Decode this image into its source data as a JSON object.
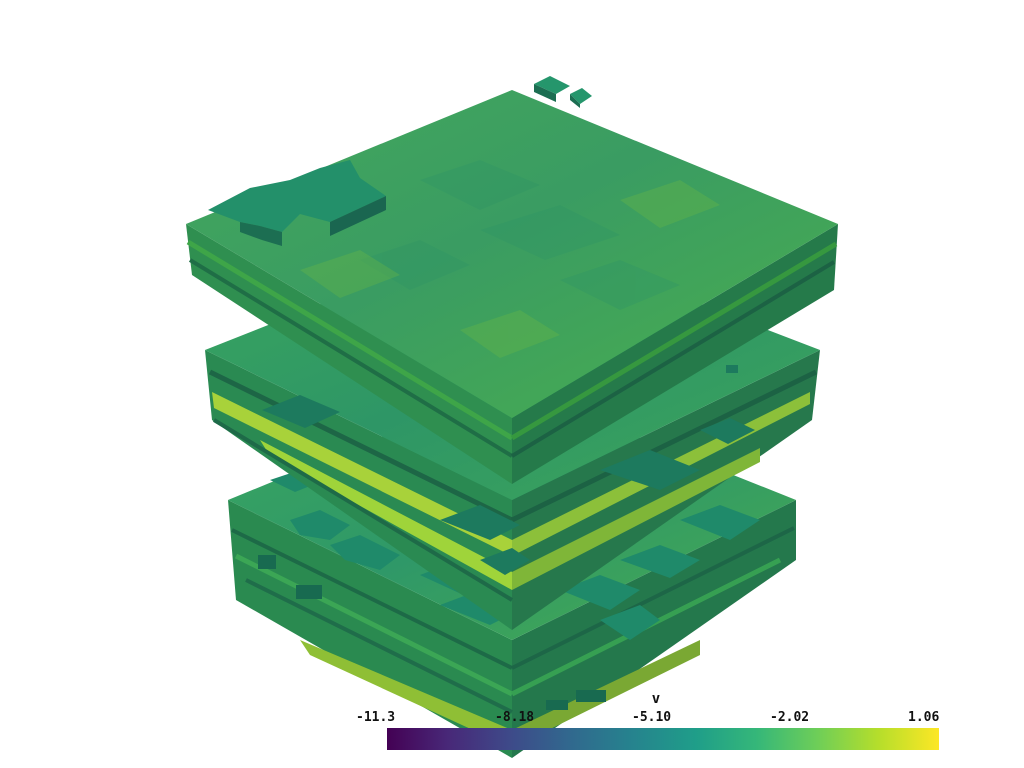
{
  "scene": {
    "colormap_name": "viridis",
    "layer_colors": {
      "top_face": "#3fad5a",
      "side_left": "#2b8a57",
      "side_right": "#267a4e",
      "patch": "#23906a",
      "patch_side": "#1c6e52",
      "yellow_streak": "#9fd43a"
    }
  },
  "colorbar": {
    "title": "v",
    "ticks": [
      "-11.3",
      "-8.18",
      "-5.10",
      "-2.02",
      "1.06"
    ],
    "range": [
      -11.3,
      1.06
    ],
    "stops": [
      "#440154",
      "#482878",
      "#3e4989",
      "#31688e",
      "#26828e",
      "#1f9e89",
      "#35b779",
      "#6ece58",
      "#b5de2b",
      "#fde725"
    ]
  }
}
